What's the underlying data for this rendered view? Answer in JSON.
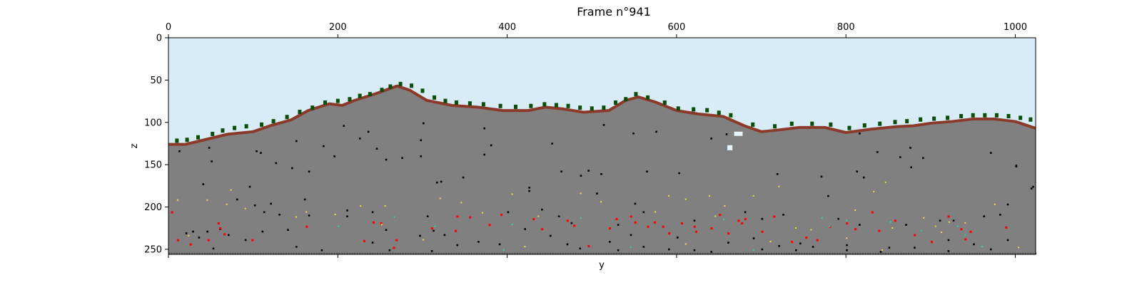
{
  "chart_data": {
    "type": "heatmap",
    "title": "Frame n°941",
    "xlabel": "y",
    "ylabel": "z",
    "xlim": [
      0,
      1024
    ],
    "ylim": [
      256,
      0
    ],
    "x_ticks_top": [
      0,
      200,
      400,
      600,
      800,
      1000
    ],
    "y_ticks": [
      0,
      50,
      100,
      150,
      200,
      250
    ],
    "colors": {
      "sky": "#d7ecf7",
      "stone": "#808080",
      "dirt": "#8b3a2a",
      "grass": "#0b4d0b",
      "cave": "#000000",
      "water_ice": "#e6f4fb",
      "ore_red": "#ff0000",
      "ore_yellow": "#f3e03b",
      "ore_cyan": "#22d6b0",
      "bedrock_speckle": "#5a5a5a"
    },
    "surface_profile": [
      {
        "y": 0,
        "z": 126
      },
      {
        "y": 20,
        "z": 126
      },
      {
        "y": 45,
        "z": 120
      },
      {
        "y": 70,
        "z": 114
      },
      {
        "y": 100,
        "z": 111
      },
      {
        "y": 120,
        "z": 104
      },
      {
        "y": 145,
        "z": 97
      },
      {
        "y": 165,
        "z": 86
      },
      {
        "y": 190,
        "z": 78
      },
      {
        "y": 205,
        "z": 80
      },
      {
        "y": 220,
        "z": 74
      },
      {
        "y": 245,
        "z": 66
      },
      {
        "y": 270,
        "z": 57
      },
      {
        "y": 285,
        "z": 62
      },
      {
        "y": 305,
        "z": 74
      },
      {
        "y": 335,
        "z": 80
      },
      {
        "y": 365,
        "z": 82
      },
      {
        "y": 395,
        "z": 86
      },
      {
        "y": 425,
        "z": 86
      },
      {
        "y": 445,
        "z": 82
      },
      {
        "y": 465,
        "z": 84
      },
      {
        "y": 490,
        "z": 88
      },
      {
        "y": 520,
        "z": 86
      },
      {
        "y": 540,
        "z": 74
      },
      {
        "y": 555,
        "z": 70
      },
      {
        "y": 575,
        "z": 76
      },
      {
        "y": 600,
        "z": 86
      },
      {
        "y": 625,
        "z": 90
      },
      {
        "y": 655,
        "z": 93
      },
      {
        "y": 680,
        "z": 104
      },
      {
        "y": 700,
        "z": 111
      },
      {
        "y": 720,
        "z": 109
      },
      {
        "y": 745,
        "z": 106
      },
      {
        "y": 775,
        "z": 106
      },
      {
        "y": 800,
        "z": 112
      },
      {
        "y": 830,
        "z": 108
      },
      {
        "y": 860,
        "z": 105
      },
      {
        "y": 880,
        "z": 104
      },
      {
        "y": 900,
        "z": 101
      },
      {
        "y": 925,
        "z": 99
      },
      {
        "y": 950,
        "z": 96
      },
      {
        "y": 975,
        "z": 96
      },
      {
        "y": 1000,
        "z": 99
      },
      {
        "y": 1024,
        "z": 107
      }
    ],
    "water_pockets": [
      {
        "y": 668,
        "z": 111,
        "w": 10,
        "h": 5
      },
      {
        "y": 660,
        "z": 127,
        "w": 6,
        "h": 6
      }
    ],
    "cave_pixels": [
      [
        12,
        133
      ],
      [
        47,
        129
      ],
      [
        150,
        121
      ],
      [
        225,
        118
      ],
      [
        235,
        110
      ],
      [
        206,
        103
      ],
      [
        300,
        100
      ],
      [
        297,
        120
      ],
      [
        245,
        130
      ],
      [
        372,
        106
      ],
      [
        380,
        126
      ],
      [
        452,
        124
      ],
      [
        513,
        102
      ],
      [
        548,
        112
      ],
      [
        575,
        110
      ],
      [
        640,
        118
      ],
      [
        658,
        113
      ],
      [
        815,
        112
      ],
      [
        836,
        134
      ],
      [
        875,
        129
      ],
      [
        1000,
        151
      ],
      [
        1020,
        175
      ],
      [
        103,
        133
      ],
      [
        108,
        135
      ],
      [
        182,
        127
      ],
      [
        195,
        139
      ],
      [
        256,
        143
      ],
      [
        275,
        141
      ],
      [
        316,
        170
      ],
      [
        297,
        139
      ],
      [
        321,
        169
      ],
      [
        347,
        164
      ],
      [
        372,
        137
      ],
      [
        425,
        176
      ],
      [
        463,
        157
      ],
      [
        486,
        162
      ],
      [
        495,
        156
      ],
      [
        510,
        160
      ],
      [
        564,
        157
      ],
      [
        602,
        159
      ],
      [
        718,
        160
      ],
      [
        770,
        163
      ],
      [
        812,
        157
      ],
      [
        820,
        164
      ],
      [
        876,
        152
      ],
      [
        863,
        140
      ],
      [
        890,
        141
      ],
      [
        970,
        135
      ],
      [
        1000,
        150
      ],
      [
        50,
        145
      ],
      [
        126,
        147
      ],
      [
        145,
        153
      ],
      [
        165,
        157
      ],
      [
        160,
        190
      ],
      [
        112,
        205
      ],
      [
        120,
        195
      ],
      [
        95,
        175
      ],
      [
        40,
        172
      ],
      [
        80,
        190
      ],
      [
        101,
        197
      ],
      [
        130,
        208
      ],
      [
        165,
        209
      ],
      [
        210,
        203
      ],
      [
        240,
        205
      ],
      [
        210,
        210
      ],
      [
        256,
        226
      ],
      [
        305,
        210
      ],
      [
        312,
        227
      ],
      [
        400,
        205
      ],
      [
        425,
        180
      ],
      [
        440,
        202
      ],
      [
        460,
        210
      ],
      [
        475,
        218
      ],
      [
        505,
        183
      ],
      [
        550,
        195
      ],
      [
        560,
        205
      ],
      [
        530,
        220
      ],
      [
        545,
        232
      ],
      [
        620,
        215
      ],
      [
        680,
        205
      ],
      [
        700,
        213
      ],
      [
        725,
        208
      ],
      [
        745,
        242
      ],
      [
        778,
        186
      ],
      [
        790,
        213
      ],
      [
        815,
        220
      ],
      [
        870,
        220
      ],
      [
        910,
        215
      ],
      [
        926,
        215
      ],
      [
        962,
        210
      ],
      [
        981,
        208
      ],
      [
        990,
        196
      ],
      [
        1018,
        177
      ],
      [
        28,
        228
      ],
      [
        45,
        228
      ],
      [
        60,
        225
      ],
      [
        20,
        230
      ],
      [
        35,
        235
      ],
      [
        70,
        232
      ],
      [
        110,
        228
      ],
      [
        140,
        226
      ],
      [
        240,
        241
      ],
      [
        296,
        233
      ],
      [
        325,
        232
      ],
      [
        365,
        240
      ],
      [
        390,
        243
      ],
      [
        420,
        225
      ],
      [
        450,
        233
      ],
      [
        485,
        248
      ],
      [
        520,
        240
      ],
      [
        560,
        246
      ],
      [
        600,
        235
      ],
      [
        620,
        250
      ],
      [
        660,
        241
      ],
      [
        690,
        236
      ],
      [
        720,
        245
      ],
      [
        760,
        246
      ],
      [
        800,
        250
      ],
      [
        840,
        252
      ],
      [
        880,
        247
      ],
      [
        920,
        238
      ],
      [
        950,
        243
      ],
      [
        990,
        238
      ],
      [
        52,
        248
      ],
      [
        90,
        238
      ],
      [
        150,
        246
      ],
      [
        180,
        250
      ],
      [
        260,
        250
      ],
      [
        310,
        251
      ],
      [
        340,
        244
      ],
      [
        470,
        243
      ],
      [
        530,
        250
      ],
      [
        590,
        249
      ],
      [
        640,
        252
      ],
      [
        700,
        249
      ],
      [
        740,
        250
      ],
      [
        800,
        244
      ],
      [
        850,
        247
      ],
      [
        920,
        251
      ],
      [
        970,
        249
      ]
    ],
    "ore_red_pixels": [
      [
        58,
        218
      ],
      [
        60,
        224
      ],
      [
        65,
        231
      ],
      [
        98,
        238
      ],
      [
        162,
        222
      ],
      [
        241,
        217
      ],
      [
        250,
        218
      ],
      [
        265,
        247
      ],
      [
        268,
        238
      ],
      [
        310,
        224
      ],
      [
        338,
        227
      ],
      [
        378,
        220
      ],
      [
        430,
        213
      ],
      [
        440,
        225
      ],
      [
        470,
        215
      ],
      [
        478,
        221
      ],
      [
        520,
        224
      ],
      [
        528,
        213
      ],
      [
        545,
        210
      ],
      [
        565,
        222
      ],
      [
        573,
        217
      ],
      [
        583,
        222
      ],
      [
        605,
        218
      ],
      [
        620,
        222
      ],
      [
        622,
        228
      ],
      [
        640,
        224
      ],
      [
        660,
        230
      ],
      [
        676,
        218
      ],
      [
        680,
        213
      ],
      [
        700,
        228
      ],
      [
        714,
        210
      ],
      [
        752,
        235
      ],
      [
        765,
        238
      ],
      [
        800,
        218
      ],
      [
        810,
        225
      ],
      [
        838,
        227
      ],
      [
        857,
        215
      ],
      [
        880,
        232
      ],
      [
        900,
        240
      ],
      [
        920,
        210
      ],
      [
        935,
        225
      ],
      [
        946,
        228
      ],
      [
        988,
        223
      ],
      [
        3,
        205
      ],
      [
        10,
        238
      ],
      [
        25,
        243
      ],
      [
        46,
        238
      ],
      [
        230,
        239
      ],
      [
        340,
        210
      ],
      [
        355,
        211
      ],
      [
        392,
        208
      ],
      [
        495,
        245
      ],
      [
        550,
        217
      ],
      [
        590,
        230
      ],
      [
        650,
        208
      ],
      [
        672,
        215
      ],
      [
        735,
        240
      ],
      [
        780,
        222
      ],
      [
        830,
        205
      ],
      [
        940,
        237
      ]
    ],
    "ore_yellow_pixels": [
      [
        10,
        191
      ],
      [
        45,
        191
      ],
      [
        68,
        196
      ],
      [
        73,
        179
      ],
      [
        90,
        201
      ],
      [
        150,
        211
      ],
      [
        162,
        205
      ],
      [
        226,
        198
      ],
      [
        255,
        198
      ],
      [
        320,
        189
      ],
      [
        345,
        194
      ],
      [
        370,
        206
      ],
      [
        405,
        184
      ],
      [
        436,
        210
      ],
      [
        486,
        183
      ],
      [
        510,
        193
      ],
      [
        574,
        205
      ],
      [
        590,
        186
      ],
      [
        610,
        190
      ],
      [
        638,
        186
      ],
      [
        645,
        210
      ],
      [
        656,
        198
      ],
      [
        690,
        186
      ],
      [
        720,
        175
      ],
      [
        740,
        224
      ],
      [
        758,
        226
      ],
      [
        810,
        203
      ],
      [
        832,
        181
      ],
      [
        846,
        170
      ],
      [
        854,
        224
      ],
      [
        891,
        212
      ],
      [
        905,
        222
      ],
      [
        921,
        217
      ],
      [
        940,
        218
      ],
      [
        975,
        196
      ],
      [
        1003,
        247
      ],
      [
        23,
        233
      ],
      [
        196,
        208
      ],
      [
        251,
        220
      ],
      [
        300,
        238
      ],
      [
        420,
        246
      ],
      [
        610,
        243
      ],
      [
        710,
        240
      ],
      [
        800,
        236
      ],
      [
        842,
        250
      ],
      [
        912,
        229
      ]
    ],
    "ore_cyan_pixels": [
      [
        266,
        211
      ],
      [
        314,
        222
      ],
      [
        405,
        220
      ],
      [
        486,
        212
      ],
      [
        655,
        214
      ],
      [
        771,
        212
      ],
      [
        780,
        222
      ],
      [
        800,
        215
      ],
      [
        852,
        217
      ],
      [
        888,
        227
      ],
      [
        931,
        222
      ],
      [
        940,
        232
      ],
      [
        200,
        222
      ],
      [
        395,
        250
      ],
      [
        545,
        247
      ],
      [
        690,
        250
      ],
      [
        960,
        246
      ]
    ],
    "trees_y": [
      [
        10,
        125
      ],
      [
        22,
        124
      ],
      [
        35,
        121
      ],
      [
        52,
        117
      ],
      [
        64,
        113
      ],
      [
        78,
        110
      ],
      [
        92,
        108
      ],
      [
        110,
        106
      ],
      [
        124,
        102
      ],
      [
        140,
        97
      ],
      [
        155,
        91
      ],
      [
        170,
        86
      ],
      [
        185,
        80
      ],
      [
        200,
        78
      ],
      [
        214,
        76
      ],
      [
        226,
        72
      ],
      [
        238,
        70
      ],
      [
        252,
        65
      ],
      [
        262,
        61
      ],
      [
        274,
        58
      ],
      [
        287,
        60
      ],
      [
        300,
        66
      ],
      [
        314,
        74
      ],
      [
        327,
        78
      ],
      [
        340,
        80
      ],
      [
        356,
        81
      ],
      [
        372,
        82
      ],
      [
        392,
        84
      ],
      [
        410,
        85
      ],
      [
        428,
        84
      ],
      [
        444,
        82
      ],
      [
        458,
        83
      ],
      [
        472,
        84
      ],
      [
        486,
        86
      ],
      [
        500,
        87
      ],
      [
        514,
        86
      ],
      [
        528,
        80
      ],
      [
        540,
        76
      ],
      [
        552,
        70
      ],
      [
        566,
        74
      ],
      [
        586,
        80
      ],
      [
        602,
        87
      ],
      [
        620,
        88
      ],
      [
        636,
        89
      ],
      [
        650,
        92
      ],
      [
        664,
        95
      ],
      [
        690,
        106
      ],
      [
        716,
        108
      ],
      [
        736,
        105
      ],
      [
        760,
        105
      ],
      [
        782,
        106
      ],
      [
        804,
        110
      ],
      [
        822,
        107
      ],
      [
        840,
        105
      ],
      [
        858,
        103
      ],
      [
        872,
        102
      ],
      [
        888,
        100
      ],
      [
        904,
        99
      ],
      [
        920,
        98
      ],
      [
        936,
        96
      ],
      [
        950,
        95
      ],
      [
        964,
        95
      ],
      [
        978,
        95
      ],
      [
        992,
        96
      ],
      [
        1006,
        98
      ],
      [
        1018,
        100
      ]
    ]
  }
}
